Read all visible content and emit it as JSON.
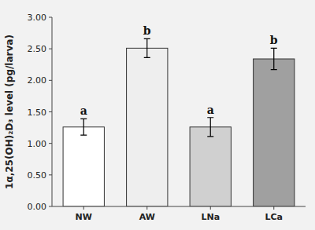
{
  "chart_data": {
    "type": "bar",
    "categories": [
      "NW",
      "AW",
      "LNa",
      "LCa"
    ],
    "values": [
      1.26,
      2.51,
      1.26,
      2.34
    ],
    "errors": [
      0.13,
      0.15,
      0.15,
      0.17
    ],
    "colors": [
      "#ffffff",
      "#eeeeee",
      "#d0d0d0",
      "#a0a0a0"
    ],
    "annotations": [
      "a",
      "b",
      "a",
      "b"
    ],
    "ylabel": "1α,25(OH)₂D₃ level (pg/larva)",
    "ylim": [
      0.0,
      3.0
    ],
    "yticks": [
      {
        "value": 0.0,
        "label": "0.00"
      },
      {
        "value": 0.5,
        "label": "0.50"
      },
      {
        "value": 1.0,
        "label": "1.00"
      },
      {
        "value": 1.5,
        "label": "1.50"
      },
      {
        "value": 2.0,
        "label": "2.00"
      },
      {
        "value": 2.5,
        "label": "2.50"
      },
      {
        "value": 3.0,
        "label": "3.00"
      }
    ],
    "grid": false
  }
}
